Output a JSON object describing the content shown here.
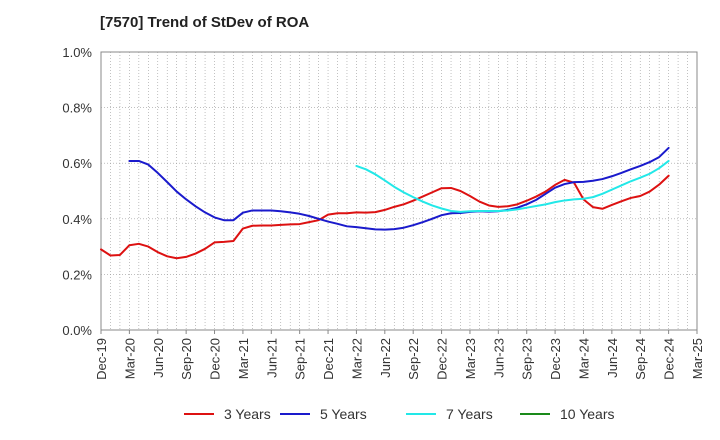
{
  "chart_data": {
    "type": "line",
    "title": "[7570]  Trend of StDev of ROA",
    "xlabel": "",
    "ylabel": "",
    "ylim": [
      0,
      1.0
    ],
    "y_ticks": [
      "0.0%",
      "0.2%",
      "0.4%",
      "0.6%",
      "0.8%",
      "1.0%"
    ],
    "x_ticks": [
      "Dec-19",
      "Mar-20",
      "Jun-20",
      "Sep-20",
      "Dec-20",
      "Mar-21",
      "Jun-21",
      "Sep-21",
      "Dec-21",
      "Mar-22",
      "Jun-22",
      "Sep-22",
      "Dec-22",
      "Mar-23",
      "Jun-23",
      "Sep-23",
      "Dec-23",
      "Mar-24",
      "Jun-24",
      "Sep-24",
      "Dec-24",
      "Mar-25"
    ],
    "x_ticks_start": "2019-12",
    "grid": true,
    "legend_position": "bottom",
    "series": [
      {
        "name": "3 Years",
        "color": "#dd1111",
        "points": [
          [
            "2019-12",
            0.29
          ],
          [
            "2020-01",
            0.268
          ],
          [
            "2020-02",
            0.27
          ],
          [
            "2020-03",
            0.305
          ],
          [
            "2020-04",
            0.31
          ],
          [
            "2020-05",
            0.3
          ],
          [
            "2020-06",
            0.28
          ],
          [
            "2020-07",
            0.265
          ],
          [
            "2020-08",
            0.258
          ],
          [
            "2020-09",
            0.263
          ],
          [
            "2020-10",
            0.275
          ],
          [
            "2020-11",
            0.292
          ],
          [
            "2020-12",
            0.315
          ],
          [
            "2021-01",
            0.317
          ],
          [
            "2021-02",
            0.32
          ],
          [
            "2021-03",
            0.365
          ],
          [
            "2021-04",
            0.375
          ],
          [
            "2021-05",
            0.376
          ],
          [
            "2021-06",
            0.376
          ],
          [
            "2021-07",
            0.378
          ],
          [
            "2021-08",
            0.38
          ],
          [
            "2021-09",
            0.381
          ],
          [
            "2021-10",
            0.388
          ],
          [
            "2021-11",
            0.395
          ],
          [
            "2021-12",
            0.415
          ],
          [
            "2022-01",
            0.42
          ],
          [
            "2022-02",
            0.42
          ],
          [
            "2022-03",
            0.423
          ],
          [
            "2022-04",
            0.422
          ],
          [
            "2022-05",
            0.424
          ],
          [
            "2022-06",
            0.432
          ],
          [
            "2022-07",
            0.443
          ],
          [
            "2022-08",
            0.452
          ],
          [
            "2022-09",
            0.465
          ],
          [
            "2022-10",
            0.48
          ],
          [
            "2022-11",
            0.495
          ],
          [
            "2022-12",
            0.51
          ],
          [
            "2023-01",
            0.511
          ],
          [
            "2023-02",
            0.5
          ],
          [
            "2023-03",
            0.482
          ],
          [
            "2023-04",
            0.462
          ],
          [
            "2023-05",
            0.448
          ],
          [
            "2023-06",
            0.443
          ],
          [
            "2023-07",
            0.445
          ],
          [
            "2023-08",
            0.452
          ],
          [
            "2023-09",
            0.465
          ],
          [
            "2023-10",
            0.48
          ],
          [
            "2023-11",
            0.498
          ],
          [
            "2023-12",
            0.522
          ],
          [
            "2024-01",
            0.54
          ],
          [
            "2024-02",
            0.53
          ],
          [
            "2024-03",
            0.47
          ],
          [
            "2024-04",
            0.442
          ],
          [
            "2024-05",
            0.436
          ],
          [
            "2024-06",
            0.45
          ],
          [
            "2024-07",
            0.463
          ],
          [
            "2024-08",
            0.475
          ],
          [
            "2024-09",
            0.482
          ],
          [
            "2024-10",
            0.498
          ],
          [
            "2024-11",
            0.523
          ],
          [
            "2024-12",
            0.555
          ]
        ]
      },
      {
        "name": "5 Years",
        "color": "#1a1acc",
        "points": [
          [
            "2020-03",
            0.608
          ],
          [
            "2020-04",
            0.608
          ],
          [
            "2020-05",
            0.595
          ],
          [
            "2020-06",
            0.565
          ],
          [
            "2020-07",
            0.532
          ],
          [
            "2020-08",
            0.498
          ],
          [
            "2020-09",
            0.47
          ],
          [
            "2020-10",
            0.445
          ],
          [
            "2020-11",
            0.423
          ],
          [
            "2020-12",
            0.405
          ],
          [
            "2021-01",
            0.395
          ],
          [
            "2021-02",
            0.395
          ],
          [
            "2021-03",
            0.422
          ],
          [
            "2021-04",
            0.43
          ],
          [
            "2021-05",
            0.43
          ],
          [
            "2021-06",
            0.43
          ],
          [
            "2021-07",
            0.427
          ],
          [
            "2021-08",
            0.423
          ],
          [
            "2021-09",
            0.418
          ],
          [
            "2021-10",
            0.41
          ],
          [
            "2021-11",
            0.4
          ],
          [
            "2021-12",
            0.39
          ],
          [
            "2022-01",
            0.382
          ],
          [
            "2022-02",
            0.373
          ],
          [
            "2022-03",
            0.37
          ],
          [
            "2022-04",
            0.366
          ],
          [
            "2022-05",
            0.362
          ],
          [
            "2022-06",
            0.361
          ],
          [
            "2022-07",
            0.363
          ],
          [
            "2022-08",
            0.368
          ],
          [
            "2022-09",
            0.377
          ],
          [
            "2022-10",
            0.388
          ],
          [
            "2022-11",
            0.4
          ],
          [
            "2022-12",
            0.413
          ],
          [
            "2023-01",
            0.42
          ],
          [
            "2023-02",
            0.421
          ],
          [
            "2023-03",
            0.425
          ],
          [
            "2023-04",
            0.427
          ],
          [
            "2023-05",
            0.426
          ],
          [
            "2023-06",
            0.427
          ],
          [
            "2023-07",
            0.432
          ],
          [
            "2023-08",
            0.44
          ],
          [
            "2023-09",
            0.452
          ],
          [
            "2023-10",
            0.468
          ],
          [
            "2023-11",
            0.49
          ],
          [
            "2023-12",
            0.512
          ],
          [
            "2024-01",
            0.525
          ],
          [
            "2024-02",
            0.532
          ],
          [
            "2024-03",
            0.533
          ],
          [
            "2024-04",
            0.537
          ],
          [
            "2024-05",
            0.543
          ],
          [
            "2024-06",
            0.553
          ],
          [
            "2024-07",
            0.565
          ],
          [
            "2024-08",
            0.578
          ],
          [
            "2024-09",
            0.59
          ],
          [
            "2024-10",
            0.604
          ],
          [
            "2024-11",
            0.622
          ],
          [
            "2024-12",
            0.655
          ]
        ]
      },
      {
        "name": "7 Years",
        "color": "#22e8e8",
        "points": [
          [
            "2022-03",
            0.59
          ],
          [
            "2022-04",
            0.578
          ],
          [
            "2022-05",
            0.56
          ],
          [
            "2022-06",
            0.538
          ],
          [
            "2022-07",
            0.515
          ],
          [
            "2022-08",
            0.495
          ],
          [
            "2022-09",
            0.478
          ],
          [
            "2022-10",
            0.462
          ],
          [
            "2022-11",
            0.448
          ],
          [
            "2022-12",
            0.437
          ],
          [
            "2023-01",
            0.428
          ],
          [
            "2023-02",
            0.425
          ],
          [
            "2023-03",
            0.427
          ],
          [
            "2023-04",
            0.428
          ],
          [
            "2023-05",
            0.428
          ],
          [
            "2023-06",
            0.428
          ],
          [
            "2023-07",
            0.43
          ],
          [
            "2023-08",
            0.434
          ],
          [
            "2023-09",
            0.44
          ],
          [
            "2023-10",
            0.446
          ],
          [
            "2023-11",
            0.452
          ],
          [
            "2023-12",
            0.46
          ],
          [
            "2024-01",
            0.466
          ],
          [
            "2024-02",
            0.47
          ],
          [
            "2024-03",
            0.472
          ],
          [
            "2024-04",
            0.478
          ],
          [
            "2024-05",
            0.49
          ],
          [
            "2024-06",
            0.505
          ],
          [
            "2024-07",
            0.52
          ],
          [
            "2024-08",
            0.535
          ],
          [
            "2024-09",
            0.548
          ],
          [
            "2024-10",
            0.562
          ],
          [
            "2024-11",
            0.582
          ],
          [
            "2024-12",
            0.608
          ]
        ]
      },
      {
        "name": "10 Years",
        "color": "#1a8a1a",
        "points": []
      }
    ]
  }
}
